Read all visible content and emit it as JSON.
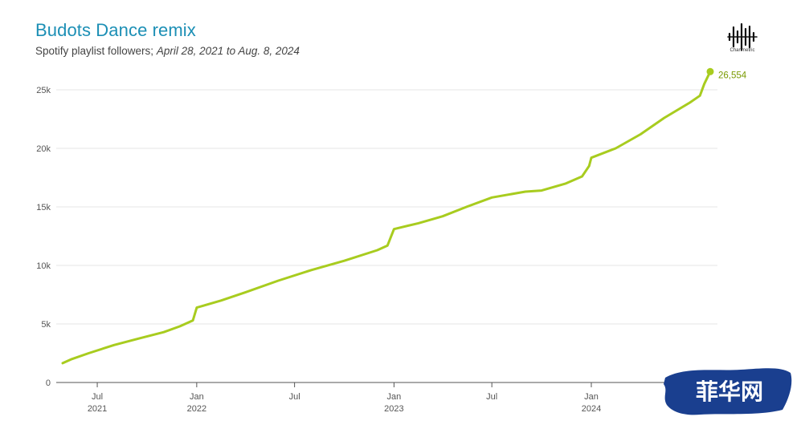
{
  "header": {
    "title": "Budots Dance remix",
    "subtitle_prefix": "Spotify playlist followers; ",
    "subtitle_range": "April 28, 2021 to Aug. 8, 2024"
  },
  "logo": {
    "icon": "chartmetric-waveform-icon",
    "text": "Chartmetric"
  },
  "watermark": {
    "text": "菲华网",
    "color": "#1a3f8f"
  },
  "colors": {
    "line": "#a8cc1f",
    "end_label": "#7a9a00",
    "grid": "#e6e6e6",
    "axis": "#555555"
  },
  "chart_data": {
    "type": "line",
    "title": "Budots Dance remix",
    "subtitle": "Spotify playlist followers; April 28, 2021 to Aug. 8, 2024",
    "xlabel": "",
    "ylabel": "",
    "ylim": [
      0,
      25000
    ],
    "yticks": [
      0,
      5000,
      10000,
      15000,
      20000,
      25000
    ],
    "ytick_labels": [
      "0",
      "5k",
      "10k",
      "15k",
      "20k",
      "25k"
    ],
    "xticks": [
      {
        "date": "2021-07-01",
        "label": "Jul",
        "year": "2021"
      },
      {
        "date": "2022-01-01",
        "label": "Jan",
        "year": "2022"
      },
      {
        "date": "2022-07-01",
        "label": "Jul",
        "year": ""
      },
      {
        "date": "2023-01-01",
        "label": "Jan",
        "year": "2023"
      },
      {
        "date": "2023-07-01",
        "label": "Jul",
        "year": ""
      },
      {
        "date": "2024-01-01",
        "label": "Jan",
        "year": "2024"
      },
      {
        "date": "2024-07-01",
        "label": "Jul",
        "year": ""
      }
    ],
    "x_range": [
      "2021-04-28",
      "2024-08-08"
    ],
    "grid": true,
    "end_label": "26,554",
    "series": [
      {
        "values": [
          [
            "2021-04-28",
            1650
          ],
          [
            "2021-05-15",
            2000
          ],
          [
            "2021-06-15",
            2500
          ],
          [
            "2021-08-01",
            3200
          ],
          [
            "2021-09-15",
            3750
          ],
          [
            "2021-11-01",
            4300
          ],
          [
            "2021-12-01",
            4800
          ],
          [
            "2021-12-25",
            5300
          ],
          [
            "2022-01-01",
            6400
          ],
          [
            "2022-02-15",
            7000
          ],
          [
            "2022-04-01",
            7700
          ],
          [
            "2022-06-01",
            8700
          ],
          [
            "2022-08-01",
            9600
          ],
          [
            "2022-10-01",
            10400
          ],
          [
            "2022-12-01",
            11300
          ],
          [
            "2022-12-20",
            11700
          ],
          [
            "2023-01-01",
            13100
          ],
          [
            "2023-02-15",
            13600
          ],
          [
            "2023-04-01",
            14200
          ],
          [
            "2023-05-15",
            15000
          ],
          [
            "2023-07-01",
            15800
          ],
          [
            "2023-09-01",
            16300
          ],
          [
            "2023-10-01",
            16400
          ],
          [
            "2023-11-15",
            17000
          ],
          [
            "2023-12-15",
            17600
          ],
          [
            "2023-12-28",
            18500
          ],
          [
            "2024-01-01",
            19200
          ],
          [
            "2024-02-15",
            20000
          ],
          [
            "2024-04-01",
            21200
          ],
          [
            "2024-05-15",
            22600
          ],
          [
            "2024-07-01",
            23900
          ],
          [
            "2024-07-20",
            24500
          ],
          [
            "2024-07-28",
            25500
          ],
          [
            "2024-08-08",
            26554
          ]
        ]
      }
    ]
  }
}
